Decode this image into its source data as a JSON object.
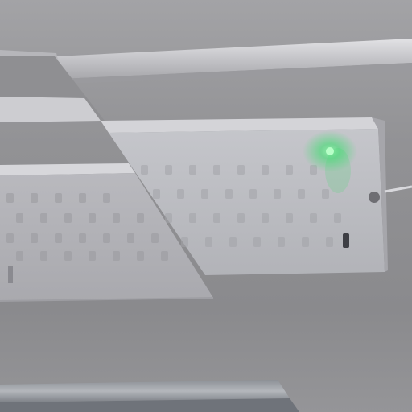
{
  "image": {
    "subject": "led-light-fixture-on-ceiling",
    "colors": {
      "ceiling": "#8e8e91",
      "fixture_frame": "#c8c8cc",
      "diffuser": "#b9b9be",
      "led_green": "#35e06a"
    }
  }
}
